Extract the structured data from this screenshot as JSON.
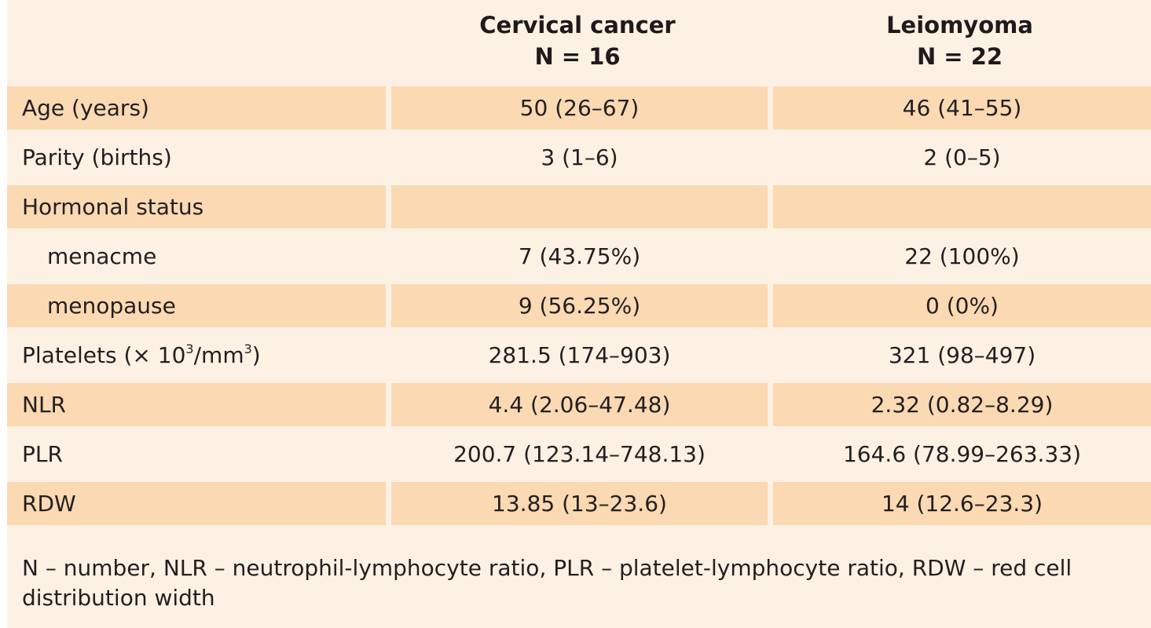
{
  "table": {
    "columns": [
      {
        "name": "Cervical cancer",
        "n": "N = 16"
      },
      {
        "name": "Leiomyoma",
        "n": "N = 22"
      }
    ],
    "rows": [
      {
        "label": "Age (years)",
        "cervical": "50 (26–67)",
        "leiomyoma": "46 (41–55)"
      },
      {
        "label": "Parity (births)",
        "cervical": "3 (1–6)",
        "leiomyoma": "2 (0–5)"
      },
      {
        "label": "Hormonal status",
        "cervical": "",
        "leiomyoma": ""
      },
      {
        "label": "menacme",
        "cervical": "7 (43.75%)",
        "leiomyoma": "22 (100%)"
      },
      {
        "label": "menopause",
        "cervical": "9 (56.25%)",
        "leiomyoma": "0 (0%)"
      },
      {
        "label_prefix": "Platelets (× 10",
        "label_sup1": "3",
        "label_mid": "/mm",
        "label_sup2": "3",
        "label_suffix": ")",
        "cervical": "281.5 (174–903)",
        "leiomyoma": "321 (98–497)"
      },
      {
        "label": "NLR",
        "cervical": "4.4 (2.06–47.48)",
        "leiomyoma": "2.32 (0.82–8.29)"
      },
      {
        "label": "PLR",
        "cervical": "200.7 (123.14–748.13)",
        "leiomyoma": "164.6 (78.99–263.33)"
      },
      {
        "label": "RDW",
        "cervical": "13.85 (13–23.6)",
        "leiomyoma": "14 (12.6–23.3)"
      }
    ]
  },
  "footnote": "N – number, NLR – neutrophil-lymphocyte ratio, PLR – platelet-lymphocyte ratio, RDW – red cell distribution width",
  "colors": {
    "panel_background": "#fdf1e4",
    "shaded_row": "#fad9b3",
    "text": "#231f20"
  }
}
